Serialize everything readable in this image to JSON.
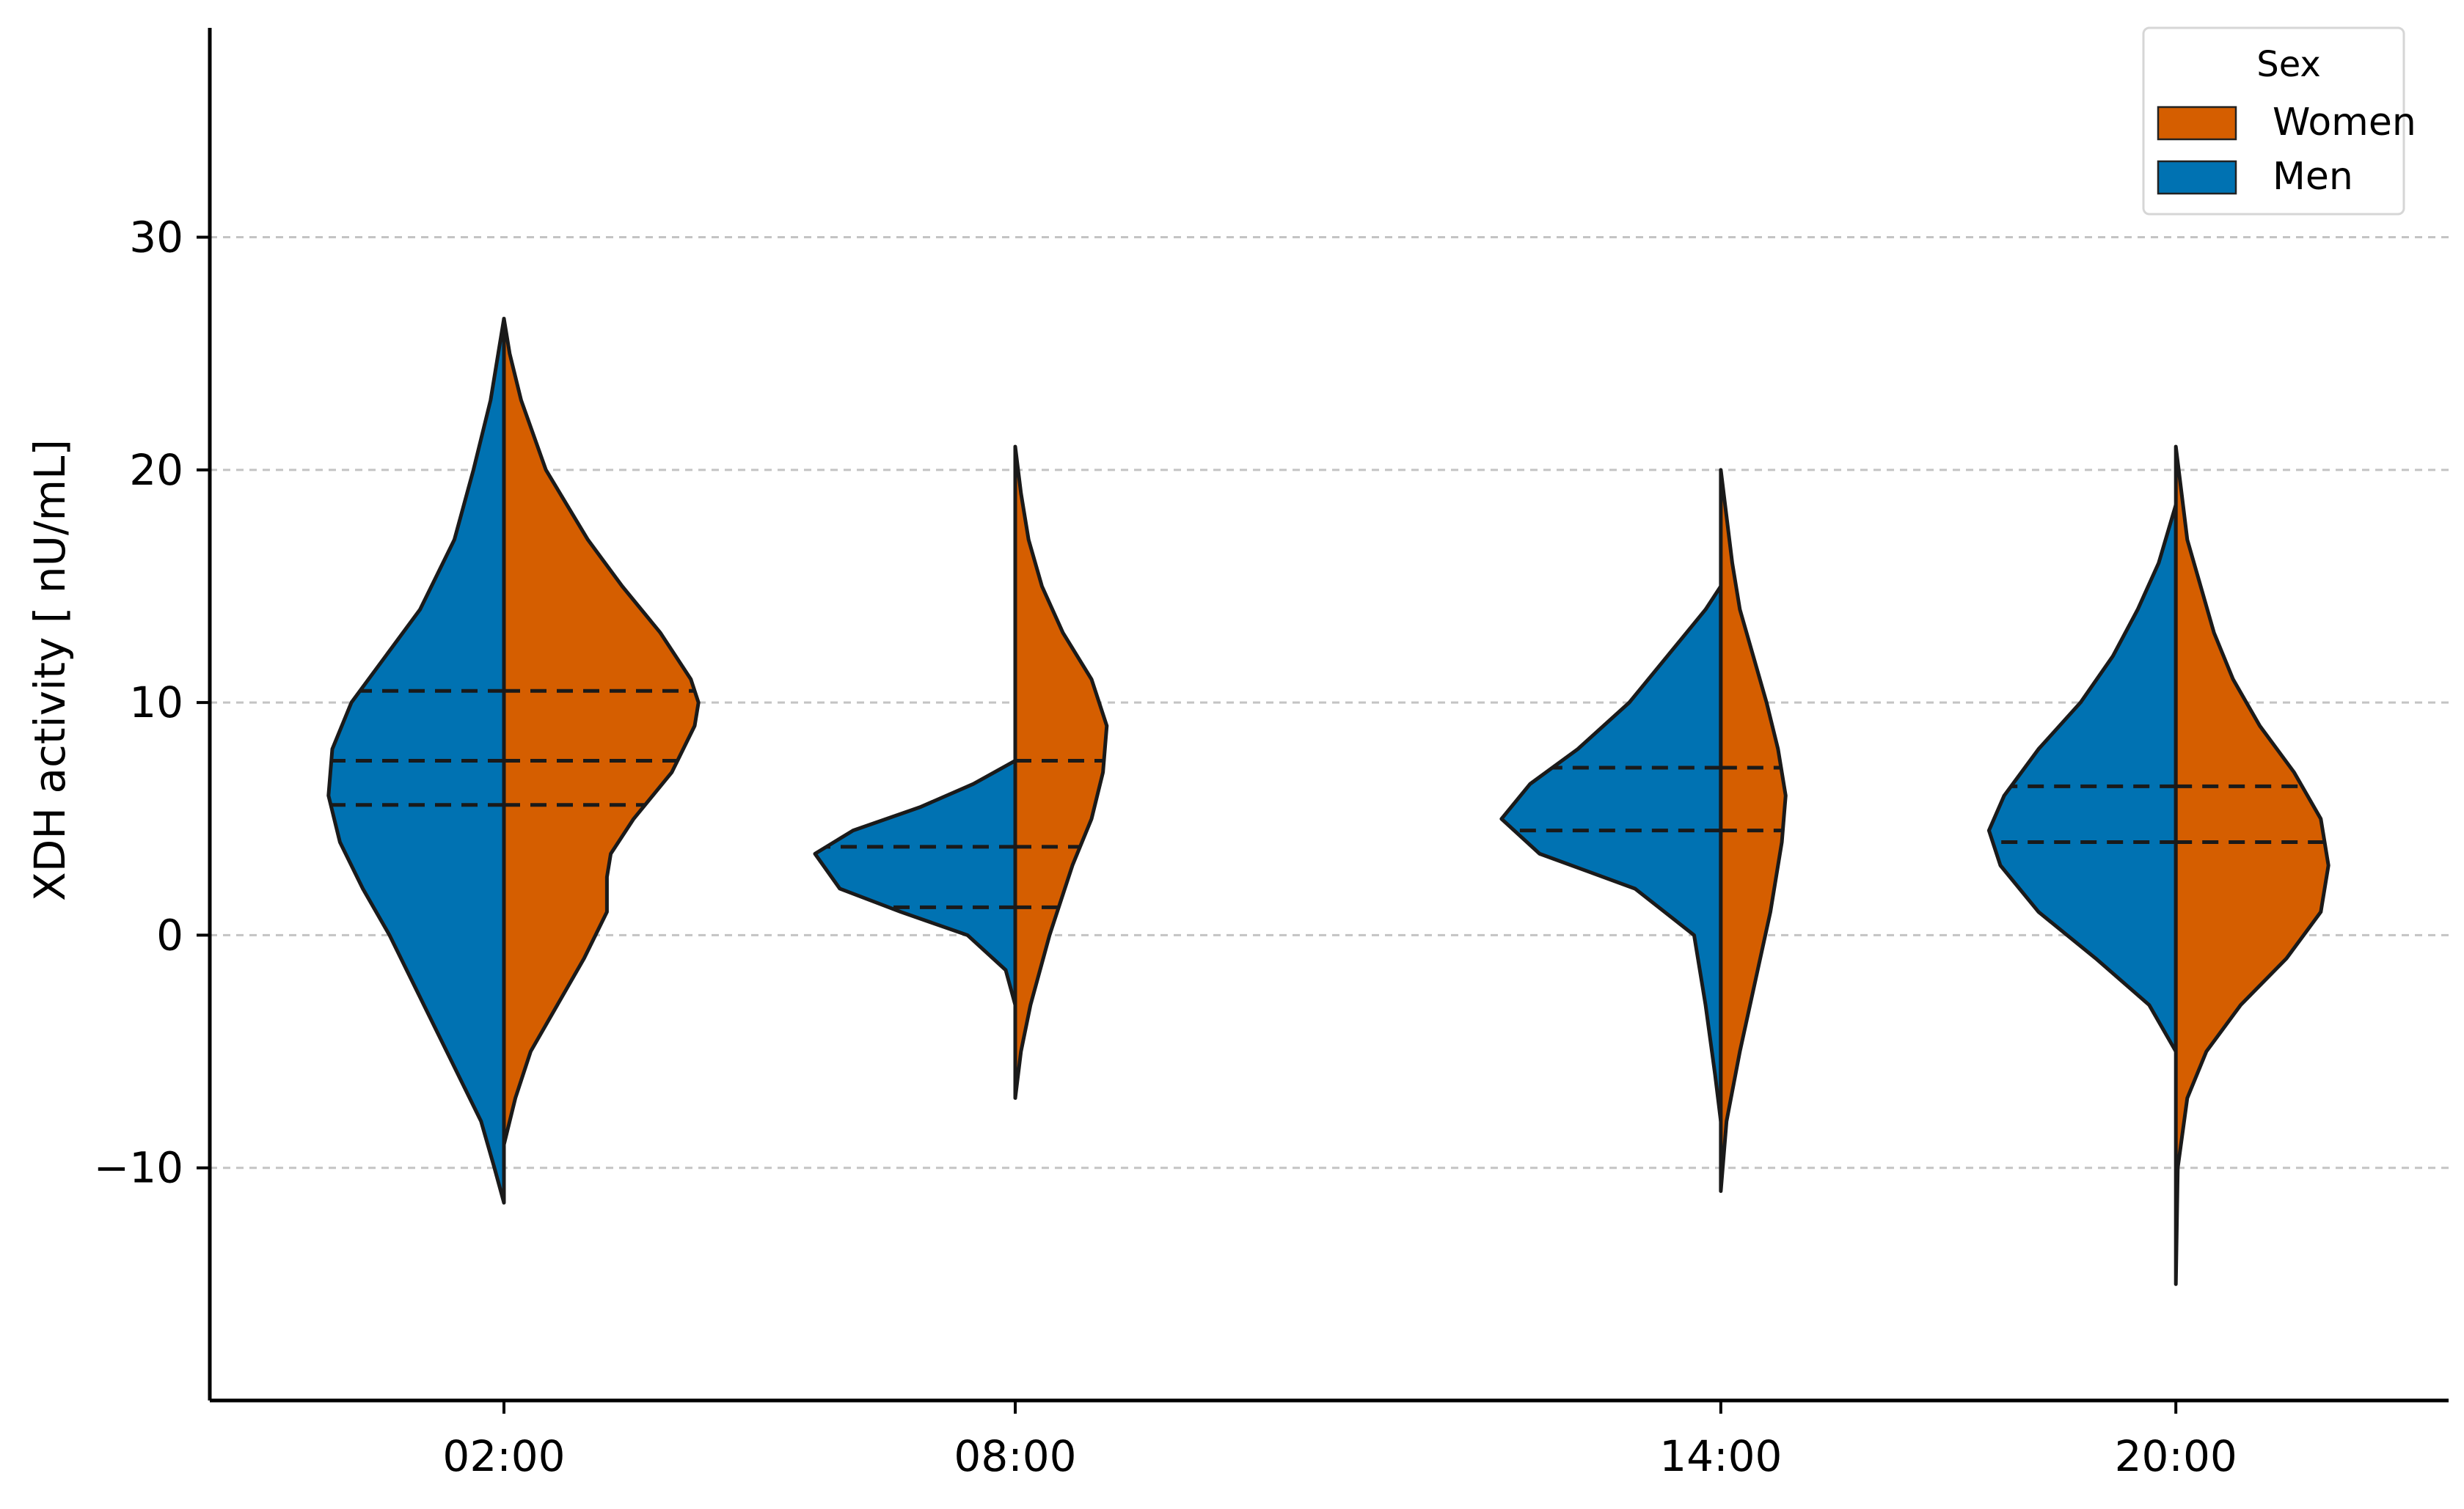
{
  "chart_data": {
    "type": "violin",
    "split": true,
    "title": "",
    "xlabel": "",
    "ylabel": "XDH activity [ nU/mL]",
    "ylim": [
      -20,
      39
    ],
    "yticks": [
      -10,
      0,
      10,
      20,
      30
    ],
    "ytick_labels": [
      "−10",
      "0",
      "10",
      "20",
      "30"
    ],
    "grid": {
      "y": true,
      "style": "dashed"
    },
    "categories": [
      "02:00",
      "08:00",
      "14:00",
      "20:00"
    ],
    "category_positions": [
      0,
      1,
      2.38,
      3.27
    ],
    "legend": {
      "title": "Sex",
      "placement": "top-right",
      "entries": [
        {
          "label": "Women",
          "color": "#D55E00"
        },
        {
          "label": "Men",
          "color": "#0072B2"
        }
      ]
    },
    "series": [
      {
        "name": "Men",
        "side": "left",
        "color": "#0072B2",
        "violins": [
          {
            "category": "02:00",
            "min": -11.5,
            "max": 26.5,
            "quartiles": [
              5.6,
              7.5,
              10.5
            ],
            "density": [
              [
                -11.5,
                0
              ],
              [
                -10,
                0.05
              ],
              [
                -8,
                0.12
              ],
              [
                -5,
                0.3
              ],
              [
                -2,
                0.48
              ],
              [
                0,
                0.6
              ],
              [
                2,
                0.74
              ],
              [
                4,
                0.86
              ],
              [
                6,
                0.92
              ],
              [
                8,
                0.9
              ],
              [
                10,
                0.8
              ],
              [
                12,
                0.62
              ],
              [
                14,
                0.44
              ],
              [
                17,
                0.26
              ],
              [
                20,
                0.16
              ],
              [
                23,
                0.07
              ],
              [
                25,
                0.03
              ],
              [
                26.5,
                0
              ]
            ]
          },
          {
            "category": "08:00",
            "min": -3,
            "max": 7.5,
            "quartiles": [
              1.2,
              3.8
            ],
            "density": [
              [
                -3,
                0
              ],
              [
                -1.5,
                0.05
              ],
              [
                0,
                0.25
              ],
              [
                1,
                0.6
              ],
              [
                2,
                0.92
              ],
              [
                3.5,
                1.05
              ],
              [
                4.5,
                0.85
              ],
              [
                5.5,
                0.5
              ],
              [
                6.5,
                0.22
              ],
              [
                7.5,
                0
              ]
            ]
          },
          {
            "category": "14:00",
            "min": -8,
            "max": 15,
            "quartiles": [
              4.5,
              7.2
            ],
            "density": [
              [
                -8,
                0
              ],
              [
                -6,
                0.03
              ],
              [
                -3,
                0.08
              ],
              [
                0,
                0.14
              ],
              [
                2,
                0.45
              ],
              [
                3.5,
                0.95
              ],
              [
                5,
                1.15
              ],
              [
                6.5,
                1.0
              ],
              [
                8,
                0.75
              ],
              [
                10,
                0.48
              ],
              [
                12,
                0.28
              ],
              [
                14,
                0.08
              ],
              [
                15,
                0
              ]
            ]
          },
          {
            "category": "20:00",
            "min": -5,
            "max": 18.5,
            "quartiles": [
              4.0,
              6.4
            ],
            "density": [
              [
                -5,
                0
              ],
              [
                -3,
                0.14
              ],
              [
                -1,
                0.42
              ],
              [
                1,
                0.72
              ],
              [
                3,
                0.92
              ],
              [
                4.5,
                0.98
              ],
              [
                6,
                0.9
              ],
              [
                8,
                0.72
              ],
              [
                10,
                0.5
              ],
              [
                12,
                0.33
              ],
              [
                14,
                0.2
              ],
              [
                16,
                0.09
              ],
              [
                18.5,
                0
              ]
            ]
          }
        ]
      },
      {
        "name": "Women",
        "side": "right",
        "color": "#D55E00",
        "violins": [
          {
            "category": "02:00",
            "min": -9,
            "max": 26.5,
            "quartiles": [
              5.6,
              7.5,
              10.5
            ],
            "density": [
              [
                -9,
                0
              ],
              [
                -7,
                0.06
              ],
              [
                -5,
                0.14
              ],
              [
                -3,
                0.28
              ],
              [
                -1,
                0.42
              ],
              [
                1,
                0.54
              ],
              [
                2.5,
                0.54
              ],
              [
                3.5,
                0.56
              ],
              [
                5,
                0.68
              ],
              [
                7,
                0.88
              ],
              [
                9,
                1.0
              ],
              [
                10,
                1.02
              ],
              [
                11,
                0.98
              ],
              [
                13,
                0.82
              ],
              [
                15,
                0.62
              ],
              [
                17,
                0.44
              ],
              [
                20,
                0.22
              ],
              [
                23,
                0.09
              ],
              [
                25,
                0.03
              ],
              [
                26.5,
                0
              ]
            ]
          },
          {
            "category": "08:00",
            "min": -7,
            "max": 21,
            "quartiles": [
              1.2,
              3.8,
              7.5
            ],
            "density": [
              [
                -7,
                0
              ],
              [
                -5,
                0.03
              ],
              [
                -3,
                0.08
              ],
              [
                0,
                0.18
              ],
              [
                3,
                0.3
              ],
              [
                5,
                0.4
              ],
              [
                7,
                0.46
              ],
              [
                9,
                0.48
              ],
              [
                11,
                0.4
              ],
              [
                13,
                0.25
              ],
              [
                15,
                0.14
              ],
              [
                17,
                0.07
              ],
              [
                19,
                0.03
              ],
              [
                21,
                0
              ]
            ]
          },
          {
            "category": "14:00",
            "min": -11,
            "max": 20,
            "quartiles": [
              4.5,
              7.2
            ],
            "density": [
              [
                -11,
                0
              ],
              [
                -8,
                0.03
              ],
              [
                -5,
                0.1
              ],
              [
                -2,
                0.18
              ],
              [
                1,
                0.26
              ],
              [
                4,
                0.32
              ],
              [
                6,
                0.34
              ],
              [
                8,
                0.3
              ],
              [
                10,
                0.24
              ],
              [
                12,
                0.17
              ],
              [
                14,
                0.1
              ],
              [
                16,
                0.06
              ],
              [
                18,
                0.03
              ],
              [
                20,
                0
              ]
            ]
          },
          {
            "category": "20:00",
            "min": -15,
            "max": 21,
            "quartiles": [
              4.0,
              6.4
            ],
            "density": [
              [
                -15,
                0
              ],
              [
                -10,
                0.01
              ],
              [
                -7,
                0.06
              ],
              [
                -5,
                0.16
              ],
              [
                -3,
                0.34
              ],
              [
                -1,
                0.58
              ],
              [
                1,
                0.76
              ],
              [
                3,
                0.8
              ],
              [
                5,
                0.76
              ],
              [
                7,
                0.62
              ],
              [
                9,
                0.44
              ],
              [
                11,
                0.3
              ],
              [
                13,
                0.2
              ],
              [
                15,
                0.13
              ],
              [
                17,
                0.06
              ],
              [
                19,
                0.03
              ],
              [
                21,
                0
              ]
            ]
          }
        ]
      }
    ]
  }
}
